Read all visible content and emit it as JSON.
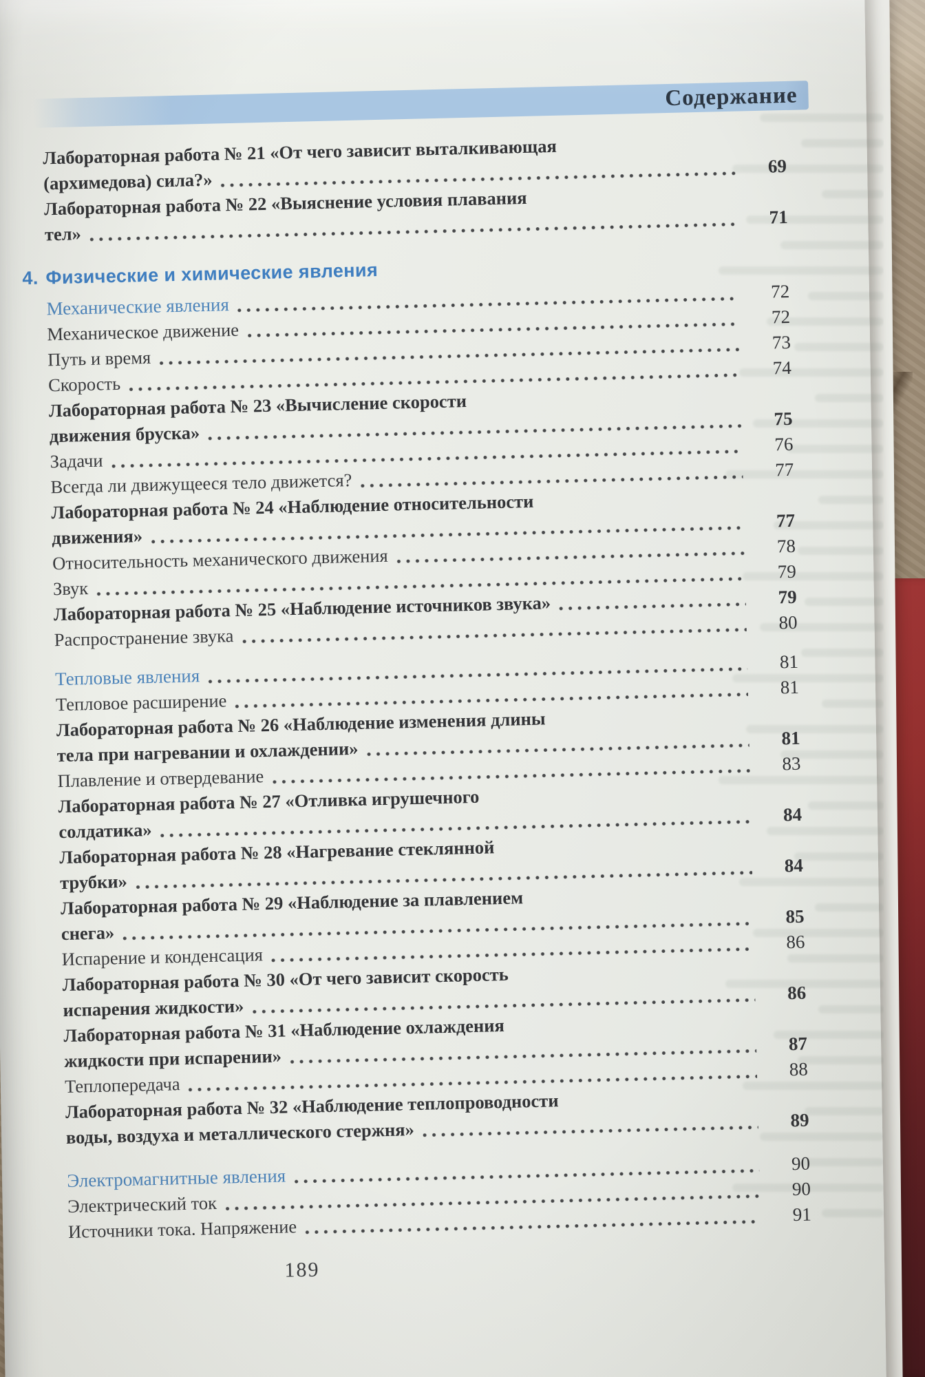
{
  "header": {
    "title": "Содержание"
  },
  "toc": {
    "items": [
      {
        "style": "lab",
        "lines": [
          "Лабораторная работа № 21 «От чего зависит выталкивающая",
          "(архимедова) сила?»"
        ],
        "page": "69"
      },
      {
        "style": "lab",
        "lines": [
          "Лабораторная работа № 22 «Выяснение условия плавания",
          "тел»"
        ],
        "page": "71"
      },
      {
        "style": "section",
        "number": "4.",
        "title": "Физические и химические явления"
      },
      {
        "style": "sub",
        "lines": [
          "Механические явления"
        ],
        "page": "72"
      },
      {
        "style": "plain",
        "lines": [
          "Механическое движение"
        ],
        "page": "72"
      },
      {
        "style": "plain",
        "lines": [
          "Путь и время"
        ],
        "page": "73"
      },
      {
        "style": "plain",
        "lines": [
          "Скорость"
        ],
        "page": "74"
      },
      {
        "style": "lab",
        "lines": [
          "Лабораторная работа № 23 «Вычисление скорости",
          "движения бруска»"
        ],
        "page": "75"
      },
      {
        "style": "plain",
        "lines": [
          "Задачи"
        ],
        "page": "76"
      },
      {
        "style": "plain",
        "lines": [
          "Всегда ли движущееся тело движется?"
        ],
        "page": "77"
      },
      {
        "style": "lab",
        "lines": [
          "Лабораторная работа № 24 «Наблюдение относительности",
          "движения»"
        ],
        "page": "77"
      },
      {
        "style": "plain",
        "lines": [
          "Относительность механического движения"
        ],
        "page": "78"
      },
      {
        "style": "plain",
        "lines": [
          "Звук"
        ],
        "page": "79"
      },
      {
        "style": "lab",
        "lines": [
          "Лабораторная работа № 25 «Наблюдение источников звука»"
        ],
        "page": "79"
      },
      {
        "style": "plain",
        "lines": [
          "Распространение звука"
        ],
        "page": "80"
      },
      {
        "style": "sub",
        "gap": "sm",
        "lines": [
          "Тепловые явления"
        ],
        "page": "81"
      },
      {
        "style": "plain",
        "lines": [
          "Тепловое расширение"
        ],
        "page": "81"
      },
      {
        "style": "lab",
        "lines": [
          "Лабораторная работа № 26 «Наблюдение изменения длины",
          "тела при нагревании и охлаждении»"
        ],
        "page": "81"
      },
      {
        "style": "plain",
        "lines": [
          "Плавление и отвердевание"
        ],
        "page": "83"
      },
      {
        "style": "lab",
        "lines": [
          "Лабораторная работа № 27 «Отливка игрушечного",
          "солдатика»"
        ],
        "page": "84"
      },
      {
        "style": "lab",
        "lines": [
          "Лабораторная работа № 28 «Нагревание стеклянной",
          "трубки»"
        ],
        "page": "84"
      },
      {
        "style": "lab",
        "lines": [
          "Лабораторная работа № 29 «Наблюдение за плавлением",
          "снега»"
        ],
        "page": "85"
      },
      {
        "style": "plain",
        "lines": [
          "Испарение и конденсация"
        ],
        "page": "86"
      },
      {
        "style": "lab",
        "lines": [
          "Лабораторная работа № 30 «От чего зависит скорость",
          "испарения жидкости»"
        ],
        "page": "86"
      },
      {
        "style": "lab",
        "lines": [
          "Лабораторная работа № 31 «Наблюдение охлаждения",
          "жидкости при испарении»"
        ],
        "page": "87"
      },
      {
        "style": "plain",
        "lines": [
          "Теплопередача"
        ],
        "page": "88"
      },
      {
        "style": "lab",
        "lines": [
          "Лабораторная работа № 32 «Наблюдение теплопроводности",
          "воды, воздуха и металлического стержня»"
        ],
        "page": "89"
      },
      {
        "style": "sub",
        "gap": "md",
        "lines": [
          "Электромагнитные явления"
        ],
        "page": "90"
      },
      {
        "style": "plain",
        "lines": [
          "Электрический ток"
        ],
        "page": "90"
      },
      {
        "style": "plain",
        "lines": [
          "Источники тока. Напряжение"
        ],
        "page": "91"
      }
    ]
  },
  "footer": {
    "page_number": "189"
  },
  "colors": {
    "band_blue": "#a9c6e2",
    "heading_blue": "#4d84ba",
    "section_blue": "#3f7ec0",
    "text_dark": "#3a3b3e",
    "paper": "#eceee9",
    "book_cover_red": "#8f2c2e",
    "carpet_tan": "#a5947d"
  }
}
